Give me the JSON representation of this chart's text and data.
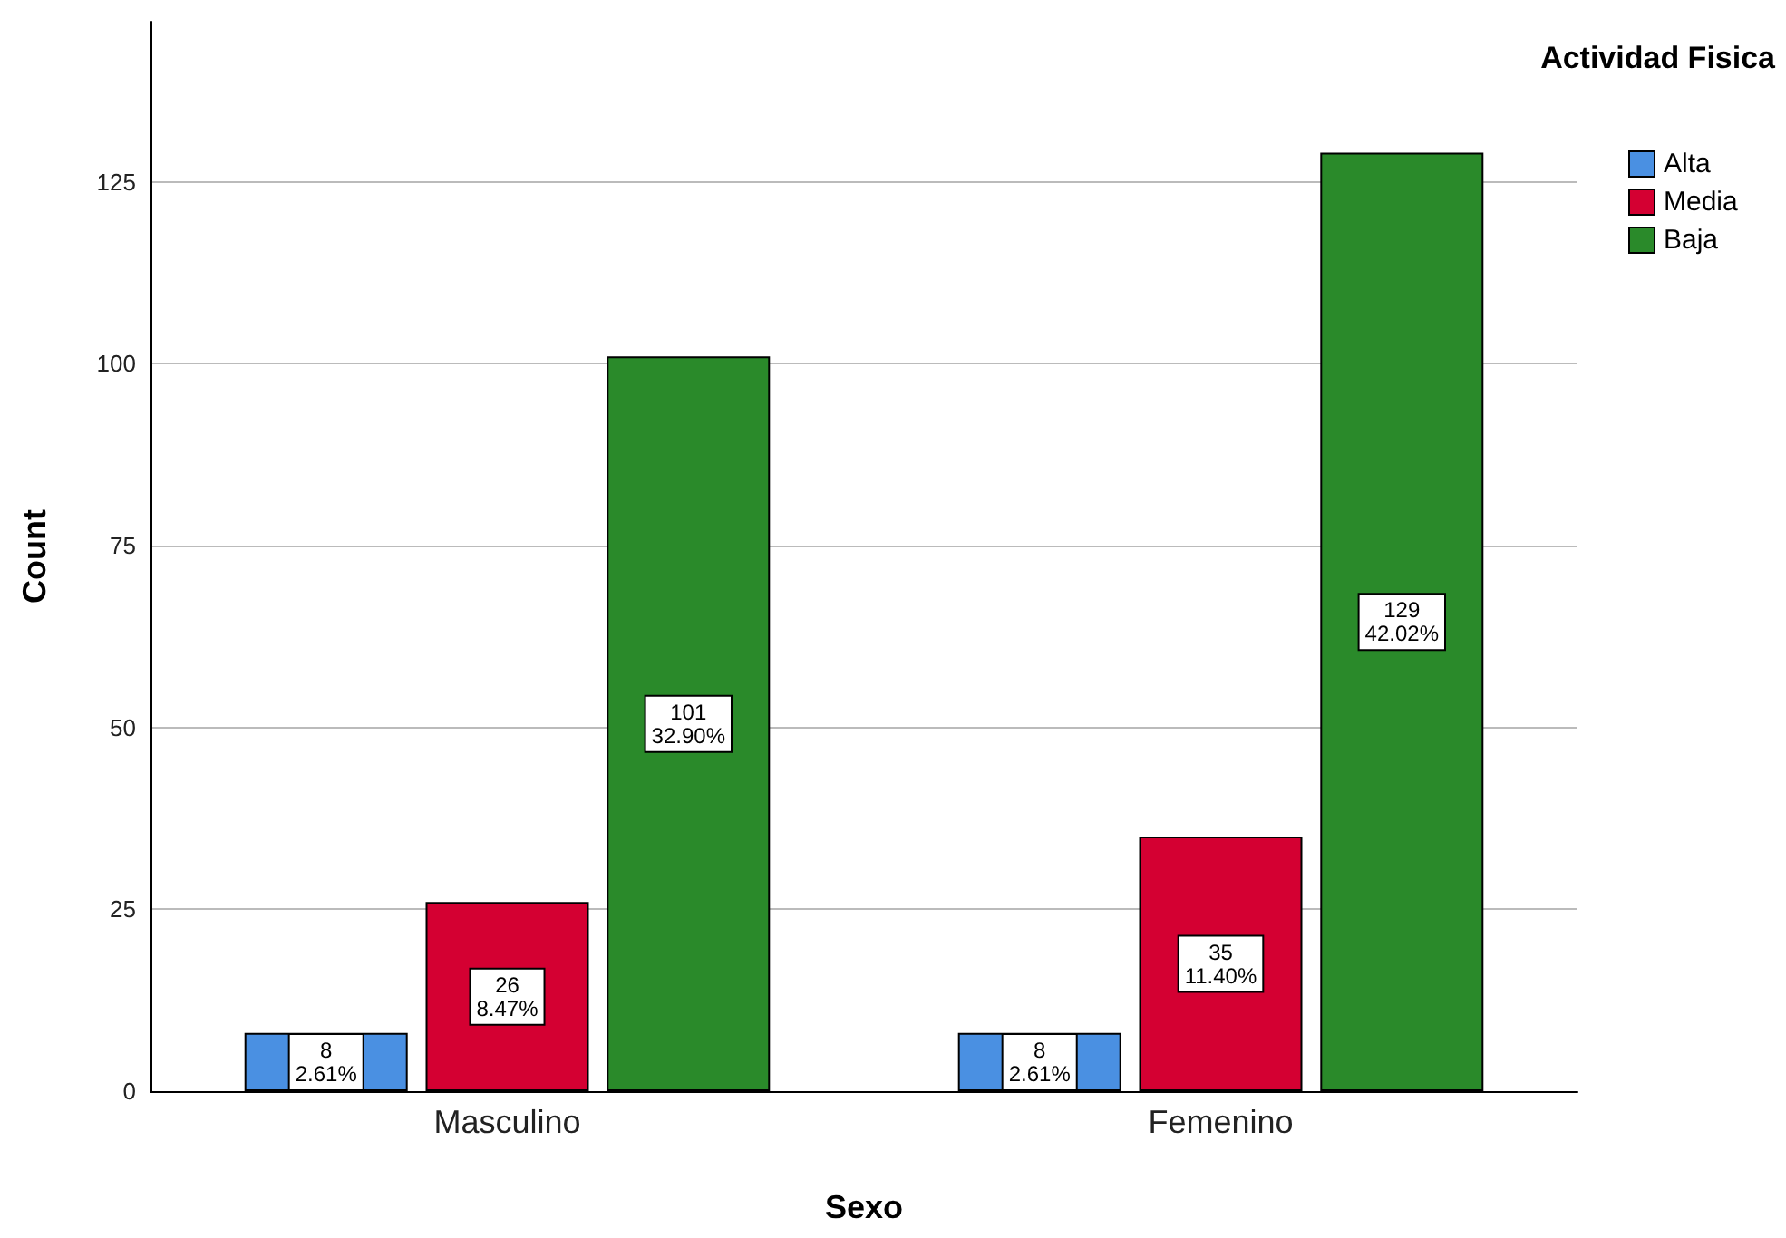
{
  "chart_data": {
    "type": "bar",
    "xlabel": "Sexo",
    "ylabel": "Count",
    "legend_title": "Actividad Fisica",
    "categories": [
      "Masculino",
      "Femenino"
    ],
    "series": [
      {
        "name": "Alta",
        "color": "#4a90e2",
        "values": [
          8,
          8
        ],
        "value_labels": [
          "8\n2.61%",
          "8\n2.61%"
        ]
      },
      {
        "name": "Media",
        "color": "#d40032",
        "values": [
          26,
          35
        ],
        "value_labels": [
          "26\n8.47%",
          "35\n11.40%"
        ]
      },
      {
        "name": "Baja",
        "color": "#2a8a2a",
        "values": [
          101,
          129
        ],
        "value_labels": [
          "101\n32.90%",
          "129\n42.02%"
        ]
      }
    ],
    "ylim": [
      0,
      147
    ],
    "yticks": [
      0,
      25,
      50,
      75,
      100,
      125
    ],
    "grid": "y",
    "legend": "top right"
  }
}
